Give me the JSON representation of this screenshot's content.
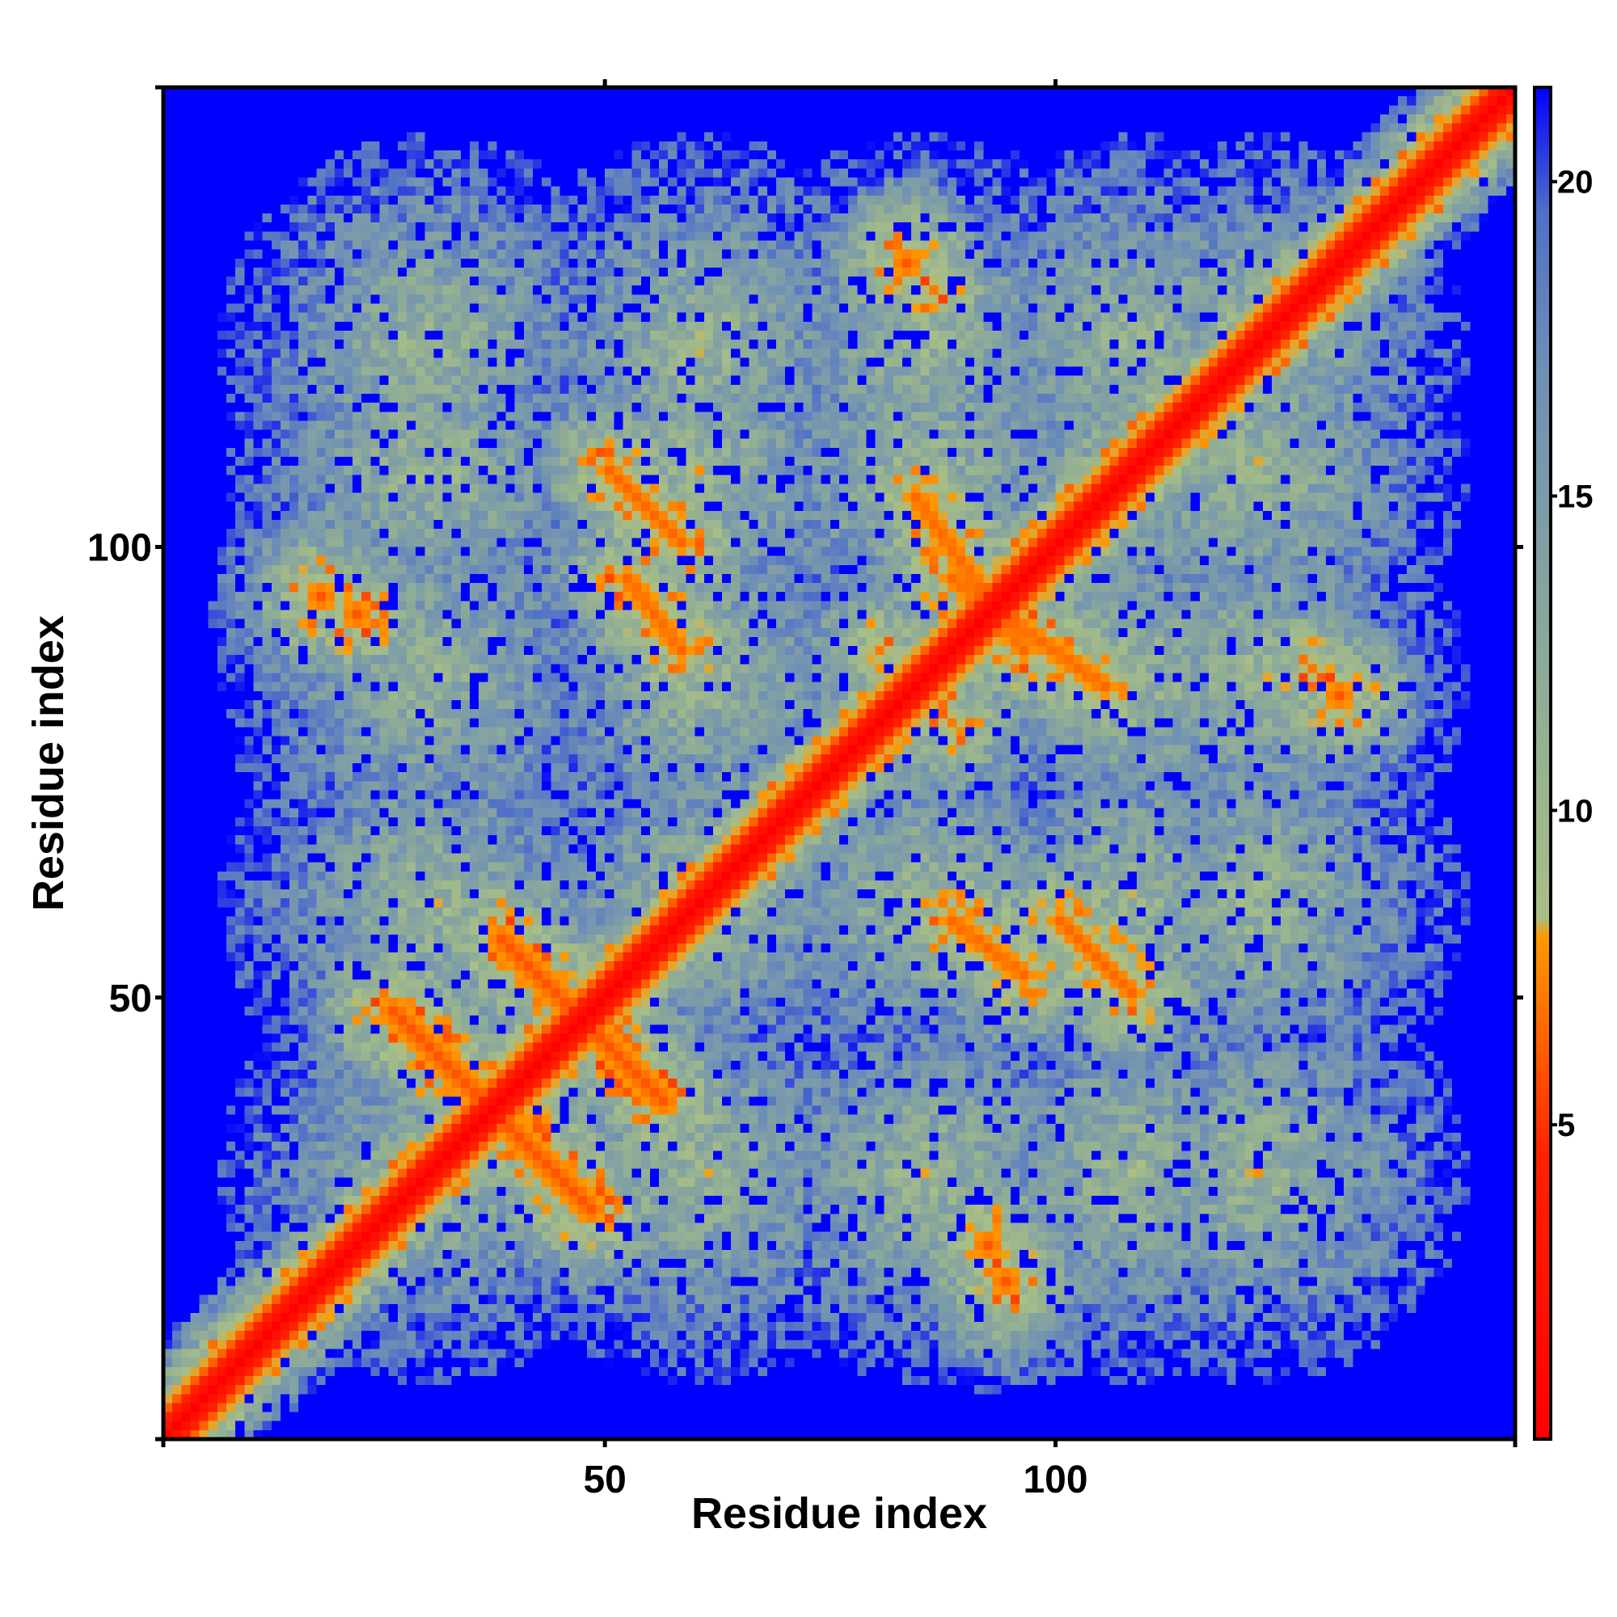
{
  "chart_data": {
    "type": "heatmap",
    "title": "",
    "xlabel": "Residue index",
    "ylabel": "Residue index",
    "n_residues": 150,
    "xlim": [
      1,
      151
    ],
    "ylim": [
      1,
      151
    ],
    "x_ticks": [
      {
        "value": 50,
        "label": "50"
      },
      {
        "value": 100,
        "label": "100"
      }
    ],
    "y_ticks": [
      {
        "value": 50,
        "label": "50"
      },
      {
        "value": 100,
        "label": "100"
      }
    ],
    "colorbar": {
      "range": [
        0,
        21.5
      ],
      "ticks": [
        {
          "value": 5,
          "label": "5"
        },
        {
          "value": 10,
          "label": "10"
        },
        {
          "value": 15,
          "label": "15"
        },
        {
          "value": 20,
          "label": "20"
        }
      ],
      "stops": [
        {
          "value": 0,
          "color": "#ff0000"
        },
        {
          "value": 4.5,
          "color": "#ff2200"
        },
        {
          "value": 8,
          "color": "#ff9a00"
        },
        {
          "value": 8.3,
          "color": "#a9bf86"
        },
        {
          "value": 12,
          "color": "#8fac96"
        },
        {
          "value": 17,
          "color": "#6f8fb6"
        },
        {
          "value": 19.5,
          "color": "#5070c8"
        },
        {
          "value": 21.5,
          "color": "#0000ff"
        }
      ]
    },
    "colors": {
      "background": "#0000ff",
      "contact_close": "#ff0000",
      "contact_mid": "#ff9a00",
      "contact_far": "#a9bf86"
    },
    "features": [
      {
        "kind": "diagonal",
        "from": 1,
        "to": 150
      },
      {
        "kind": "anti_diagonal",
        "center": [
          37,
          37
        ],
        "half_length": 11
      },
      {
        "kind": "anti_diagonal",
        "center": [
          47,
          47
        ],
        "half_length": 9
      },
      {
        "kind": "parallel_band",
        "from": [
          52,
          96
        ],
        "to": [
          58,
          88
        ]
      },
      {
        "kind": "parallel_band",
        "from": [
          88,
          96
        ],
        "to": [
          105,
          84
        ]
      },
      {
        "kind": "parallel_band",
        "from": [
          100,
          58
        ],
        "to": [
          108,
          50
        ]
      },
      {
        "kind": "patch",
        "center": [
          18,
          94
        ],
        "value": 6
      },
      {
        "kind": "patch",
        "center": [
          83,
          131
        ],
        "value": 6
      },
      {
        "kind": "patch",
        "center": [
          128,
          86
        ],
        "value": 7
      },
      {
        "kind": "patch",
        "center": [
          92,
          22
        ],
        "value": 6
      },
      {
        "kind": "patch",
        "center": [
          80,
          88
        ],
        "value": 7
      }
    ]
  }
}
